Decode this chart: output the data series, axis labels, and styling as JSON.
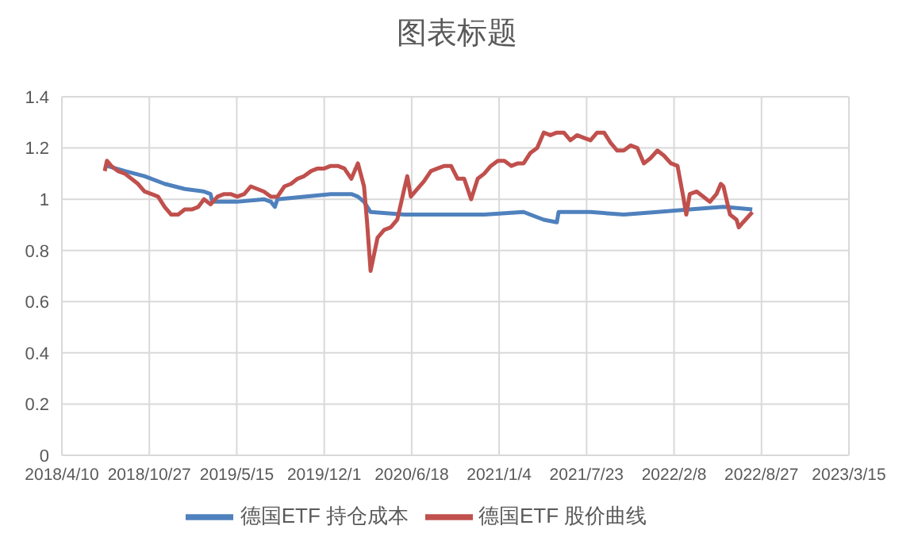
{
  "chart_data": {
    "type": "line",
    "title": "图表标题",
    "legend": "bottom",
    "grid": true,
    "marker": "none",
    "line_style": "solid",
    "xlim": [
      "2018-04-10",
      "2023-03-15"
    ],
    "xticks": [
      {
        "value": "2018-04-10",
        "label": "2018/4/10"
      },
      {
        "value": "2018-10-27",
        "label": "2018/10/27"
      },
      {
        "value": "2019-05-15",
        "label": "2019/5/15"
      },
      {
        "value": "2019-12-01",
        "label": "2019/12/1"
      },
      {
        "value": "2020-06-18",
        "label": "2020/6/18"
      },
      {
        "value": "2021-01-04",
        "label": "2021/1/4"
      },
      {
        "value": "2021-07-23",
        "label": "2021/7/23"
      },
      {
        "value": "2022-02-08",
        "label": "2022/2/8"
      },
      {
        "value": "2022-08-27",
        "label": "2022/8/27"
      },
      {
        "value": "2023-03-15",
        "label": "2023/3/15"
      }
    ],
    "ylim": [
      0,
      1.4
    ],
    "yticks": [
      0,
      0.2,
      0.4,
      0.6,
      0.8,
      1,
      1.2,
      1.4
    ],
    "series": [
      {
        "name": "德国ETF 持仓成本",
        "color": "#4f81bd",
        "x": [
          "2018-07-22",
          "2018-09-01",
          "2018-10-16",
          "2018-12-01",
          "2019-01-16",
          "2019-03-01",
          "2019-03-16",
          "2019-03-20",
          "2019-05-16",
          "2019-07-16",
          "2019-08-01",
          "2019-08-10",
          "2019-08-16",
          "2019-10-16",
          "2019-12-16",
          "2020-02-01",
          "2020-02-16",
          "2020-03-01",
          "2020-03-16",
          "2020-06-01",
          "2020-09-01",
          "2020-12-01",
          "2021-03-01",
          "2021-03-16",
          "2021-04-16",
          "2021-05-16",
          "2021-05-20",
          "2021-08-01",
          "2021-10-16",
          "2022-01-01",
          "2022-03-16",
          "2022-06-01",
          "2022-08-06"
        ],
        "values": [
          1.13,
          1.11,
          1.09,
          1.06,
          1.04,
          1.03,
          1.02,
          0.99,
          0.99,
          1.0,
          0.99,
          0.97,
          1.0,
          1.01,
          1.02,
          1.02,
          1.01,
          0.99,
          0.95,
          0.94,
          0.94,
          0.94,
          0.95,
          0.94,
          0.92,
          0.91,
          0.95,
          0.95,
          0.94,
          0.95,
          0.96,
          0.97,
          0.96
        ]
      },
      {
        "name": "德国ETF 股价曲线",
        "color": "#c0504d",
        "x": [
          "2018-07-17",
          "2018-07-22",
          "2018-08-01",
          "2018-08-16",
          "2018-09-01",
          "2018-09-16",
          "2018-10-01",
          "2018-10-16",
          "2018-11-01",
          "2018-11-16",
          "2018-12-01",
          "2018-12-16",
          "2019-01-01",
          "2019-01-16",
          "2019-02-01",
          "2019-02-16",
          "2019-03-01",
          "2019-03-16",
          "2019-04-01",
          "2019-04-16",
          "2019-05-01",
          "2019-05-16",
          "2019-06-01",
          "2019-06-16",
          "2019-07-01",
          "2019-07-16",
          "2019-08-01",
          "2019-08-16",
          "2019-09-01",
          "2019-09-16",
          "2019-10-01",
          "2019-10-16",
          "2019-11-01",
          "2019-11-16",
          "2019-12-01",
          "2019-12-16",
          "2020-01-01",
          "2020-01-16",
          "2020-02-01",
          "2020-02-16",
          "2020-03-01",
          "2020-03-08",
          "2020-03-16",
          "2020-04-01",
          "2020-04-16",
          "2020-05-01",
          "2020-05-16",
          "2020-06-01",
          "2020-06-08",
          "2020-06-16",
          "2020-07-01",
          "2020-07-16",
          "2020-08-01",
          "2020-08-16",
          "2020-09-01",
          "2020-09-16",
          "2020-10-01",
          "2020-10-16",
          "2020-11-01",
          "2020-11-16",
          "2020-12-01",
          "2020-12-16",
          "2021-01-01",
          "2021-01-16",
          "2021-02-01",
          "2021-02-16",
          "2021-03-01",
          "2021-03-16",
          "2021-04-01",
          "2021-04-16",
          "2021-05-01",
          "2021-05-16",
          "2021-06-01",
          "2021-06-16",
          "2021-07-01",
          "2021-07-16",
          "2021-08-01",
          "2021-08-16",
          "2021-09-01",
          "2021-09-16",
          "2021-10-01",
          "2021-10-16",
          "2021-11-01",
          "2021-11-16",
          "2021-12-01",
          "2021-12-16",
          "2022-01-01",
          "2022-01-16",
          "2022-02-01",
          "2022-02-16",
          "2022-03-01",
          "2022-03-08",
          "2022-03-16",
          "2022-04-01",
          "2022-04-16",
          "2022-05-01",
          "2022-05-16",
          "2022-05-26",
          "2022-06-01",
          "2022-06-16",
          "2022-07-01",
          "2022-07-06",
          "2022-07-16",
          "2022-08-01",
          "2022-08-06"
        ],
        "values": [
          1.11,
          1.15,
          1.13,
          1.11,
          1.1,
          1.08,
          1.06,
          1.03,
          1.02,
          1.01,
          0.97,
          0.94,
          0.94,
          0.96,
          0.96,
          0.97,
          1.0,
          0.98,
          1.01,
          1.02,
          1.02,
          1.01,
          1.02,
          1.05,
          1.04,
          1.03,
          1.01,
          1.01,
          1.05,
          1.06,
          1.08,
          1.09,
          1.11,
          1.12,
          1.12,
          1.13,
          1.13,
          1.12,
          1.08,
          1.14,
          1.05,
          0.91,
          0.72,
          0.85,
          0.88,
          0.89,
          0.92,
          1.04,
          1.09,
          1.01,
          1.04,
          1.07,
          1.11,
          1.12,
          1.13,
          1.13,
          1.08,
          1.08,
          1.0,
          1.08,
          1.1,
          1.13,
          1.15,
          1.15,
          1.13,
          1.14,
          1.14,
          1.18,
          1.2,
          1.26,
          1.25,
          1.26,
          1.26,
          1.23,
          1.25,
          1.24,
          1.23,
          1.26,
          1.26,
          1.22,
          1.19,
          1.19,
          1.21,
          1.2,
          1.14,
          1.16,
          1.19,
          1.17,
          1.14,
          1.13,
          1.01,
          0.94,
          1.02,
          1.03,
          1.01,
          0.99,
          1.02,
          1.06,
          1.05,
          0.94,
          0.92,
          0.89,
          0.91,
          0.94,
          0.95
        ]
      }
    ]
  }
}
